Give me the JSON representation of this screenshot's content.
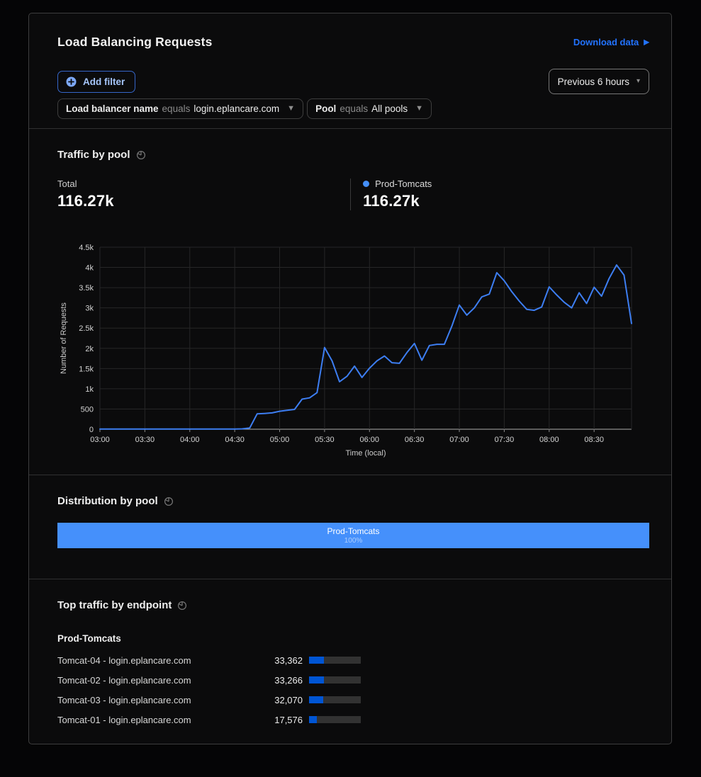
{
  "header": {
    "title": "Load Balancing Requests",
    "download_label": "Download data",
    "add_filter_label": "Add filter",
    "time_range_label": "Previous 6 hours",
    "filters": [
      {
        "field": "Load balancer name",
        "operator": "equals",
        "value": "login.eplancare.com"
      },
      {
        "field": "Pool",
        "operator": "equals",
        "value": "All pools"
      }
    ]
  },
  "traffic": {
    "section_title": "Traffic by pool",
    "total_label": "Total",
    "total_value": "116.27k",
    "legend": {
      "name": "Prod-Tomcats",
      "value": "116.27k",
      "color": "#4590fb"
    }
  },
  "chart_data": {
    "type": "line",
    "title": "Traffic by pool",
    "xlabel": "Time (local)",
    "ylabel": "Number of Requests",
    "ylim": [
      0,
      4500
    ],
    "grid": true,
    "x_tick_labels": [
      "03:00",
      "03:30",
      "04:00",
      "04:30",
      "05:00",
      "05:30",
      "06:00",
      "06:30",
      "07:00",
      "07:30",
      "08:00",
      "08:30"
    ],
    "y_tick_labels": [
      "0",
      "500",
      "1k",
      "1.5k",
      "2k",
      "2.5k",
      "3k",
      "3.5k",
      "4k",
      "4.5k"
    ],
    "x": [
      "03:00",
      "03:05",
      "03:10",
      "03:15",
      "03:20",
      "03:25",
      "03:30",
      "03:35",
      "03:40",
      "03:45",
      "03:50",
      "03:55",
      "04:00",
      "04:05",
      "04:10",
      "04:15",
      "04:20",
      "04:25",
      "04:30",
      "04:35",
      "04:40",
      "04:45",
      "04:50",
      "04:55",
      "05:00",
      "05:05",
      "05:10",
      "05:15",
      "05:20",
      "05:25",
      "05:30",
      "05:35",
      "05:40",
      "05:45",
      "05:50",
      "05:55",
      "06:00",
      "06:05",
      "06:10",
      "06:15",
      "06:20",
      "06:25",
      "06:30",
      "06:35",
      "06:40",
      "06:45",
      "06:50",
      "06:55",
      "07:00",
      "07:05",
      "07:10",
      "07:15",
      "07:20",
      "07:25",
      "07:30",
      "07:35",
      "07:40",
      "07:45",
      "07:50",
      "07:55",
      "08:00",
      "08:05",
      "08:10",
      "08:15",
      "08:20",
      "08:25",
      "08:30",
      "08:35",
      "08:40",
      "08:45",
      "08:50",
      "08:55"
    ],
    "series": [
      {
        "name": "Prod-Tomcats",
        "color": "#3d7ef2",
        "values": [
          5,
          5,
          6,
          5,
          5,
          6,
          5,
          5,
          5,
          6,
          5,
          5,
          6,
          5,
          5,
          5,
          6,
          5,
          5,
          8,
          30,
          380,
          390,
          405,
          445,
          470,
          490,
          745,
          775,
          905,
          2020,
          1690,
          1175,
          1310,
          1560,
          1280,
          1510,
          1690,
          1810,
          1645,
          1630,
          1895,
          2120,
          1705,
          2070,
          2100,
          2100,
          2550,
          3070,
          2820,
          3000,
          3270,
          3340,
          3870,
          3670,
          3400,
          3170,
          2965,
          2940,
          3020,
          3520,
          3320,
          3140,
          3000,
          3375,
          3110,
          3510,
          3290,
          3725,
          4060,
          3810,
          2615
        ]
      }
    ]
  },
  "distribution": {
    "section_title": "Distribution by pool",
    "bars": [
      {
        "name": "Prod-Tomcats",
        "percent": 100,
        "percent_label": "100%",
        "color": "#4590fb"
      }
    ]
  },
  "endpoints": {
    "section_title": "Top traffic by endpoint",
    "group": "Prod-Tomcats",
    "total": 116274,
    "bar_fill_color": "#0055d4",
    "bar_track_color": "#323232",
    "rows": [
      {
        "name": "Tomcat-04 - login.eplancare.com",
        "value": 33362,
        "value_label": "33,362"
      },
      {
        "name": "Tomcat-02 - login.eplancare.com",
        "value": 33266,
        "value_label": "33,266"
      },
      {
        "name": "Tomcat-03 - login.eplancare.com",
        "value": 32070,
        "value_label": "32,070"
      },
      {
        "name": "Tomcat-01 - login.eplancare.com",
        "value": 17576,
        "value_label": "17,576"
      }
    ]
  },
  "colors": {
    "accent_link_blue": "#2273ff",
    "chart_line_blue": "#3d7ef2",
    "pool_blue": "#4590fb",
    "endpoint_bar_blue": "#0055d4",
    "panel_border": "#3e3e3e"
  }
}
